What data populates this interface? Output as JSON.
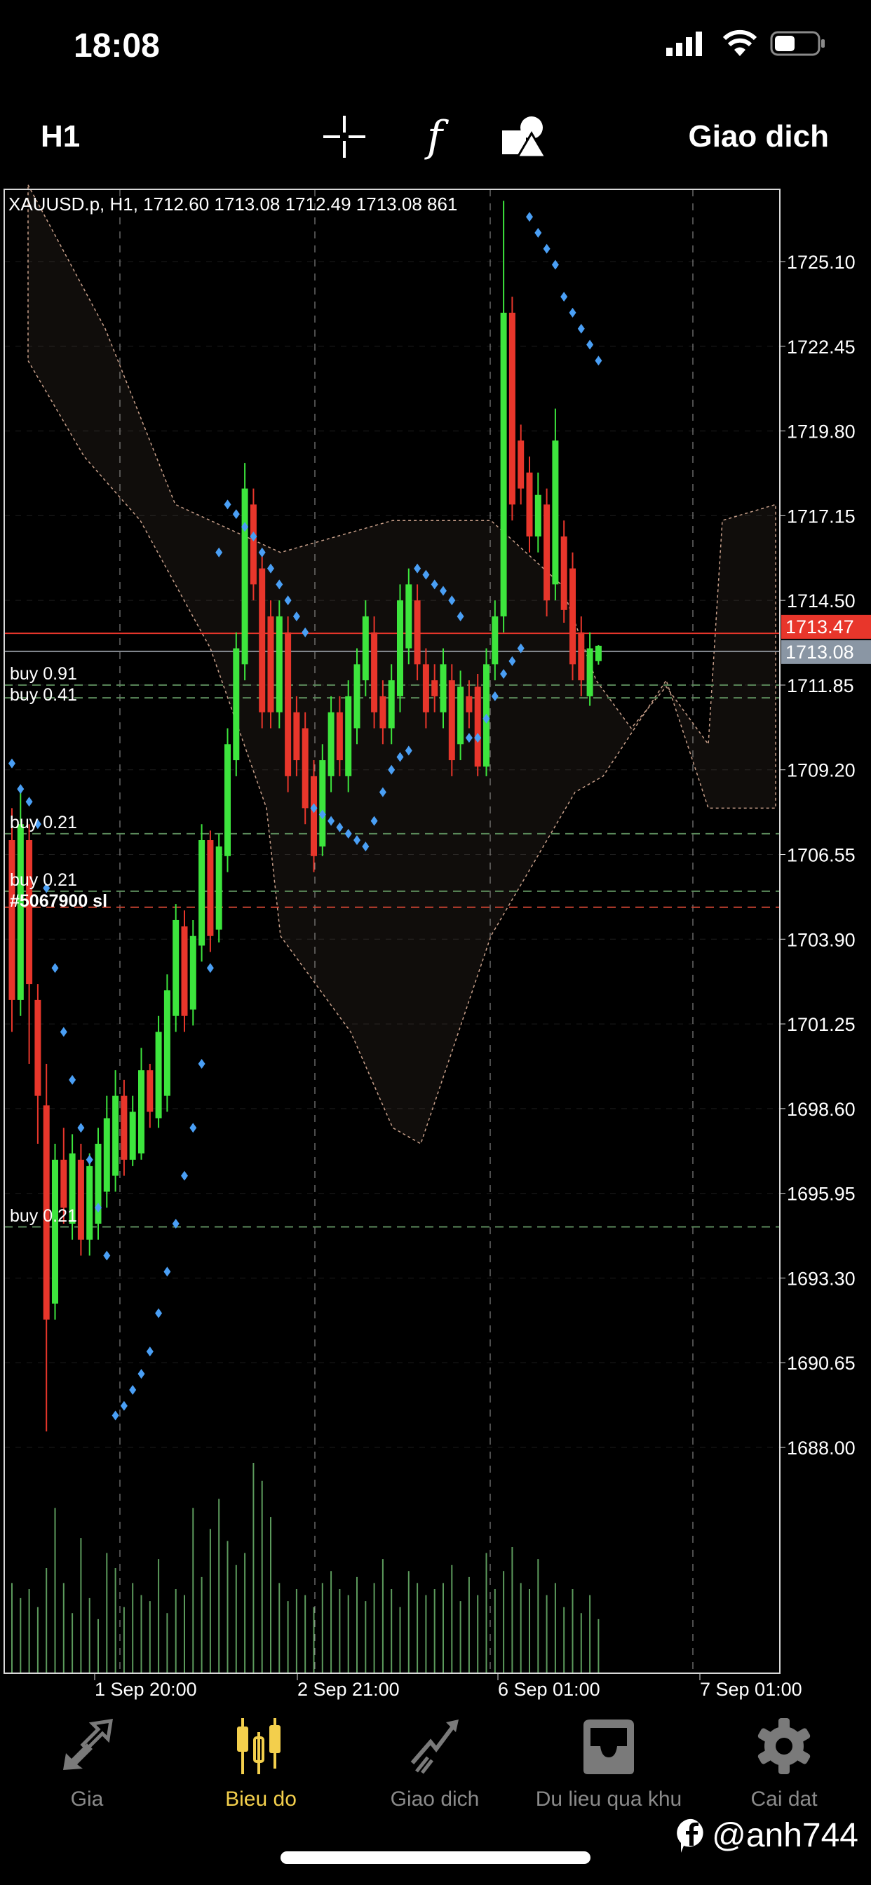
{
  "status_bar": {
    "time": "18:08"
  },
  "toolbar": {
    "timeframe": "H1",
    "icons": [
      "crosshair-icon",
      "function-icon",
      "shapes-icon"
    ],
    "function_glyph": "f",
    "trade_label": "Giao dich"
  },
  "chart_data": {
    "type": "candlestick",
    "title": "XAUUSD.p, H1, 1712.60 1713.08 1712.49 1713.08 861",
    "y_ticks": [
      "1725.10",
      "1722.45",
      "1719.80",
      "1717.15",
      "1714.50",
      "1711.85",
      "1709.20",
      "1706.55",
      "1703.90",
      "1701.25",
      "1698.60",
      "1695.95",
      "1693.30",
      "1690.65",
      "1688.00"
    ],
    "ylim": [
      1684.5,
      1728.5
    ],
    "x_ticks": [
      "1 Sep 20:00",
      "2 Sep 21:00",
      "6 Sep 01:00",
      "7 Sep 01:00"
    ],
    "bid_price": "1713.08",
    "ask_price": "1713.47",
    "colors": {
      "up": "#3de53d",
      "down": "#e8362b",
      "sar": "#4a9ff5",
      "bid_line": "#8a8f96",
      "ask_line": "#e8362b",
      "order_line": "#5b8a5b",
      "sl_line": "#c2402f",
      "cloud": "#c9a08a"
    },
    "candles": [
      [
        1707,
        1702,
        1708,
        1701
      ],
      [
        1702,
        1707.5,
        1708.5,
        1701.5
      ],
      [
        1707,
        1702.5,
        1707.5,
        1700
      ],
      [
        1702,
        1699,
        1702.5,
        1697.5
      ],
      [
        1698.7,
        1692,
        1700,
        1688.5
      ],
      [
        1692.5,
        1697,
        1697.5,
        1692
      ],
      [
        1697,
        1695.5,
        1698,
        1695
      ],
      [
        1695,
        1697.2,
        1697.8,
        1694.5
      ],
      [
        1697,
        1694.5,
        1697.5,
        1694
      ],
      [
        1694.5,
        1696.8,
        1697.2,
        1694
      ],
      [
        1695,
        1697.5,
        1698,
        1694.5
      ],
      [
        1696,
        1698.3,
        1699,
        1695.5
      ],
      [
        1696.5,
        1699,
        1699.8,
        1696
      ],
      [
        1699,
        1697,
        1699.5,
        1696.5
      ],
      [
        1697,
        1698.5,
        1699,
        1696.8
      ],
      [
        1697.2,
        1699.8,
        1700.5,
        1697
      ],
      [
        1699.8,
        1698.5,
        1700,
        1698
      ],
      [
        1698.3,
        1701,
        1701.5,
        1698
      ],
      [
        1699,
        1702.3,
        1702.8,
        1698.5
      ],
      [
        1701.5,
        1704.5,
        1705,
        1701
      ],
      [
        1704.3,
        1701.5,
        1704.8,
        1701
      ],
      [
        1701.7,
        1704,
        1704.5,
        1701.2
      ],
      [
        1703.7,
        1707,
        1707.5,
        1703.2
      ],
      [
        1707,
        1704,
        1707.3,
        1703.5
      ],
      [
        1704.2,
        1706.8,
        1707.2,
        1703.8
      ],
      [
        1706.5,
        1710,
        1710.5,
        1706
      ],
      [
        1709.5,
        1713,
        1713.5,
        1709
      ],
      [
        1712.5,
        1718,
        1718.8,
        1712
      ],
      [
        1717.5,
        1715,
        1718,
        1714.5
      ],
      [
        1715.5,
        1711,
        1716,
        1710.5
      ],
      [
        1714,
        1711,
        1714.5,
        1710.5
      ],
      [
        1711,
        1714,
        1714.5,
        1710.5
      ],
      [
        1713.5,
        1709,
        1714,
        1708.5
      ],
      [
        1711,
        1709.5,
        1711.5,
        1709
      ],
      [
        1710.5,
        1708,
        1711,
        1707.5
      ],
      [
        1709,
        1706.5,
        1709.5,
        1706
      ],
      [
        1706.8,
        1709.5,
        1710,
        1706.5
      ],
      [
        1709,
        1711,
        1711.5,
        1708.5
      ],
      [
        1711,
        1709.5,
        1711.5,
        1709
      ],
      [
        1709,
        1711.5,
        1712,
        1708.5
      ],
      [
        1710.5,
        1712.5,
        1713,
        1710
      ],
      [
        1712,
        1714,
        1714.5,
        1711.5
      ],
      [
        1713.5,
        1711,
        1714,
        1710.5
      ],
      [
        1711.5,
        1710.5,
        1712,
        1710
      ],
      [
        1710.5,
        1712,
        1712.5,
        1710
      ],
      [
        1711.5,
        1714.5,
        1715,
        1711
      ],
      [
        1713,
        1715,
        1715.5,
        1712.5
      ],
      [
        1714.5,
        1712.5,
        1715,
        1712
      ],
      [
        1712.5,
        1711,
        1713,
        1710.5
      ],
      [
        1712,
        1711.5,
        1712.5,
        1711
      ],
      [
        1711,
        1712.5,
        1713,
        1710.5
      ],
      [
        1712,
        1709.5,
        1712.5,
        1709
      ],
      [
        1710,
        1711.8,
        1712.3,
        1709.5
      ],
      [
        1711.5,
        1711,
        1712,
        1710.5
      ],
      [
        1711.8,
        1709.3,
        1712.2,
        1709
      ],
      [
        1709.3,
        1712.5,
        1713,
        1709
      ],
      [
        1712.5,
        1714,
        1714.5,
        1712
      ],
      [
        1714,
        1723.5,
        1727,
        1713.5
      ],
      [
        1723.5,
        1717.5,
        1724,
        1717
      ],
      [
        1719.5,
        1718,
        1720,
        1717.5
      ],
      [
        1718.5,
        1716.5,
        1719,
        1716
      ],
      [
        1716.5,
        1717.8,
        1718.5,
        1716
      ],
      [
        1717.5,
        1714.5,
        1718,
        1714
      ],
      [
        1715,
        1719.5,
        1720.5,
        1714.5
      ],
      [
        1716.5,
        1714.2,
        1717,
        1713.8
      ],
      [
        1715.5,
        1712.5,
        1716,
        1712
      ],
      [
        1713.5,
        1712,
        1714,
        1711.5
      ],
      [
        1711.5,
        1713,
        1713.5,
        1711.2
      ],
      [
        1712.6,
        1713.08,
        1713.1,
        1712.49
      ]
    ],
    "parabolic_sar": [
      1709.4,
      1708.6,
      1708.2,
      1707.5,
      1705.5,
      1703,
      1701,
      1699.5,
      1698,
      1697,
      1695.5,
      1694,
      1689,
      1689.3,
      1689.8,
      1690.3,
      1691,
      1692.2,
      1693.5,
      1695,
      1696.5,
      1698,
      1700,
      1703,
      1716,
      1717.5,
      1717.2,
      1716.8,
      1716.5,
      1716,
      1715.5,
      1715,
      1714.5,
      1714,
      1713.5,
      1708,
      1707.8,
      1707.6,
      1707.4,
      1707.2,
      1707,
      1706.8,
      1707.6,
      1708.5,
      1709.2,
      1709.6,
      1709.8,
      1715.5,
      1715.3,
      1715,
      1714.8,
      1714.5,
      1714,
      1710.2,
      1710.2,
      1710.8,
      1711.5,
      1712.2,
      1712.6,
      1713,
      1726.5,
      1726,
      1725.5,
      1725,
      1724,
      1723.5,
      1723,
      1722.5,
      1722
    ],
    "volume": [
      30,
      25,
      28,
      22,
      35,
      55,
      30,
      20,
      45,
      25,
      18,
      40,
      35,
      22,
      30,
      26,
      24,
      38,
      20,
      28,
      26,
      55,
      32,
      48,
      58,
      44,
      36,
      40,
      70,
      64,
      52,
      30,
      24,
      28,
      26,
      22,
      30,
      34,
      28,
      26,
      32,
      24,
      30,
      38,
      28,
      22,
      34,
      30,
      26,
      28,
      30,
      36,
      24,
      32,
      26,
      40,
      28,
      34,
      42,
      30,
      28,
      38,
      26,
      30,
      22,
      28,
      20,
      26,
      18
    ],
    "orders": [
      {
        "label": "buy 0.91",
        "price": 1711.85,
        "kind": "buy"
      },
      {
        "label": "buy 0.41",
        "price": 1711.45,
        "kind": "buy"
      },
      {
        "label": "buy 0.21",
        "price": 1707.2,
        "kind": "buy"
      },
      {
        "label": "buy 0.21",
        "price": 1705.4,
        "kind": "buy"
      },
      {
        "label": "#5067900 sl",
        "price": 1704.9,
        "kind": "sl"
      },
      {
        "label": "buy 0.21",
        "price": 1694.9,
        "kind": "buy"
      }
    ]
  },
  "bottom_nav": {
    "items": [
      {
        "label": "Gia",
        "icon": "quotes-arrows-icon"
      },
      {
        "label": "Bieu do",
        "icon": "candlestick-chart-icon",
        "active": true
      },
      {
        "label": "Giao dich",
        "icon": "trade-trend-icon"
      },
      {
        "label": "Du lieu qua khu",
        "icon": "history-inbox-icon"
      },
      {
        "label": "Cai dat",
        "icon": "settings-gear-icon"
      }
    ]
  },
  "watermark": {
    "text": "@anh744",
    "logo": "facebook-logo"
  }
}
